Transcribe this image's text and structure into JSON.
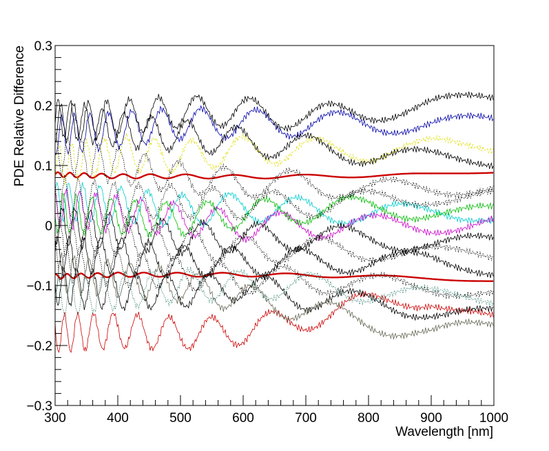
{
  "chart_data": {
    "type": "line",
    "title": "",
    "xlabel": "Wavelength [nm]",
    "ylabel": "PDE Relative Difference",
    "xlim": [
      300,
      1000
    ],
    "ylim": [
      -0.3,
      0.3
    ],
    "x_ticks": [
      300,
      400,
      500,
      600,
      700,
      800,
      900,
      1000
    ],
    "y_ticks": [
      -0.3,
      -0.2,
      -0.1,
      0,
      0.1,
      0.2,
      0.3
    ],
    "x_tick_labels": [
      "300",
      "400",
      "500",
      "600",
      "700",
      "800",
      "900",
      "1000"
    ],
    "y_tick_labels": [
      "−0.3",
      "−0.2",
      "−0.1",
      "0",
      "0.1",
      "0.2",
      "0.3"
    ],
    "grid": false,
    "legend": "none",
    "series": [
      {
        "color": "#cc0000",
        "style": "bold",
        "x": [
          300,
          400,
          500,
          600,
          700,
          800,
          900,
          1000
        ],
        "values": [
          0.085,
          0.082,
          0.082,
          0.081,
          0.082,
          0.083,
          0.085,
          0.09
        ]
      },
      {
        "color": "#cc0000",
        "style": "bold",
        "x": [
          300,
          400,
          500,
          600,
          700,
          800,
          900,
          1000
        ],
        "values": [
          -0.085,
          -0.082,
          -0.082,
          -0.082,
          -0.083,
          -0.085,
          -0.088,
          -0.092
        ]
      },
      {
        "color": "#cc0000",
        "style": "thin",
        "x": [
          300,
          400,
          500,
          600,
          700,
          800,
          900,
          1000
        ],
        "values": [
          -0.18,
          -0.175,
          -0.18,
          -0.175,
          -0.155,
          -0.13,
          -0.12,
          -0.16
        ]
      },
      {
        "color": "#0000aa",
        "style": "thin",
        "x": [
          300,
          400,
          500,
          600,
          700,
          800,
          900,
          1000
        ],
        "values": [
          0.15,
          0.16,
          0.17,
          0.17,
          0.17,
          0.17,
          0.17,
          0.17
        ]
      },
      {
        "color": "#dddd00",
        "style": "dashed",
        "x": [
          300,
          400,
          500,
          600,
          700,
          800,
          900,
          1000
        ],
        "values": [
          0.1,
          0.12,
          0.115,
          0.125,
          0.125,
          0.125,
          0.13,
          0.13
        ]
      },
      {
        "color": "#00cccc",
        "style": "thin",
        "x": [
          300,
          400,
          500,
          600,
          700,
          800,
          900,
          1000
        ],
        "values": [
          0.04,
          0.035,
          0.025,
          0.03,
          0.025,
          0.02,
          0.02,
          0.02
        ]
      },
      {
        "color": "#cc00cc",
        "style": "thin",
        "x": [
          300,
          400,
          500,
          600,
          700,
          800,
          900,
          1000
        ],
        "values": [
          0.03,
          0.02,
          0.01,
          0.0,
          0.0,
          0.0,
          0.0,
          0.01
        ]
      },
      {
        "color": "#00bb00",
        "style": "thin",
        "x": [
          300,
          400,
          500,
          600,
          700,
          800,
          900,
          1000
        ],
        "values": [
          0.02,
          0.015,
          0.01,
          0.02,
          0.025,
          0.03,
          0.025,
          0.02
        ]
      },
      {
        "color": "#000000",
        "style": "thin",
        "x": [
          300,
          400,
          500,
          600,
          700,
          800,
          900,
          1000
        ],
        "values": [
          0.17,
          0.18,
          0.19,
          0.19,
          0.18,
          0.19,
          0.2,
          0.21
        ]
      },
      {
        "color": "#000000",
        "style": "thin",
        "x": [
          300,
          400,
          500,
          600,
          700,
          800,
          900,
          1000
        ],
        "values": [
          0.18,
          0.16,
          0.15,
          0.14,
          0.13,
          0.12,
          0.11,
          0.11
        ]
      },
      {
        "color": "#000000",
        "style": "dotted",
        "x": [
          300,
          400,
          500,
          600,
          700,
          800,
          900,
          1000
        ],
        "values": [
          0.12,
          0.1,
          0.08,
          0.07,
          0.07,
          0.06,
          0.06,
          0.07
        ]
      },
      {
        "color": "#000000",
        "style": "dotted",
        "x": [
          300,
          400,
          500,
          600,
          700,
          800,
          900,
          1000
        ],
        "values": [
          0.05,
          0.04,
          0.04,
          0.035,
          0.035,
          0.04,
          0.05,
          0.05
        ]
      },
      {
        "color": "#000000",
        "style": "thin",
        "x": [
          300,
          400,
          500,
          600,
          700,
          800,
          900,
          1000
        ],
        "values": [
          0.0,
          -0.01,
          -0.02,
          -0.02,
          -0.02,
          -0.02,
          -0.03,
          -0.03
        ]
      },
      {
        "color": "#000000",
        "style": "dotted",
        "x": [
          300,
          400,
          500,
          600,
          700,
          800,
          900,
          1000
        ],
        "values": [
          -0.02,
          -0.02,
          -0.03,
          -0.04,
          -0.04,
          -0.04,
          -0.05,
          -0.05
        ]
      },
      {
        "color": "#000000",
        "style": "thin",
        "x": [
          300,
          400,
          500,
          600,
          700,
          800,
          900,
          1000
        ],
        "values": [
          -0.05,
          -0.05,
          -0.06,
          -0.06,
          -0.06,
          -0.06,
          -0.06,
          -0.07
        ]
      },
      {
        "color": "#000000",
        "style": "dotted",
        "x": [
          300,
          400,
          500,
          600,
          700,
          800,
          900,
          1000
        ],
        "values": [
          -0.06,
          -0.07,
          -0.08,
          -0.09,
          -0.09,
          -0.1,
          -0.1,
          -0.11
        ]
      },
      {
        "color": "#000000",
        "style": "thin",
        "x": [
          300,
          400,
          500,
          600,
          700,
          800,
          900,
          1000
        ],
        "values": [
          -0.1,
          -0.11,
          -0.11,
          -0.1,
          -0.12,
          -0.13,
          -0.14,
          -0.15
        ]
      },
      {
        "color": "#666655",
        "style": "thin",
        "x": [
          300,
          400,
          500,
          600,
          700,
          800,
          900,
          1000
        ],
        "values": [
          -0.08,
          -0.09,
          -0.1,
          -0.12,
          -0.14,
          -0.16,
          -0.18,
          -0.17
        ]
      },
      {
        "color": "#2e7d6b",
        "style": "dotted",
        "x": [
          300,
          400,
          500,
          600,
          700,
          800,
          900,
          1000
        ],
        "values": [
          -0.12,
          -0.11,
          -0.1,
          -0.1,
          -0.1,
          -0.11,
          -0.12,
          -0.12
        ]
      }
    ]
  }
}
